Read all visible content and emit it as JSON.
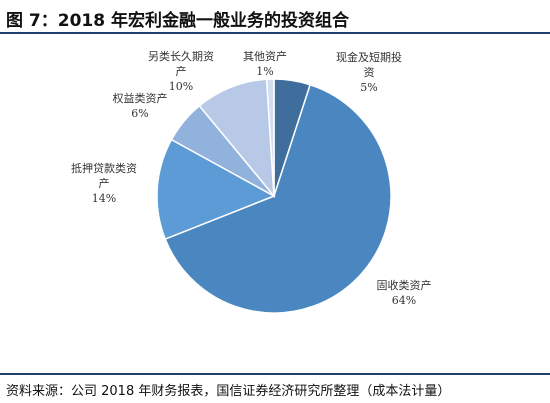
{
  "header": {
    "title": "图 7：2018 年宏利金融一般业务的投资组合"
  },
  "chart_data": {
    "type": "pie",
    "title": "",
    "categories": [
      "现金及短期投资",
      "固收类资产",
      "抵押贷款类资产",
      "权益类资产",
      "另类长久期资产",
      "其他资产"
    ],
    "values": [
      5,
      64,
      14,
      6,
      10,
      1
    ],
    "labels": [
      {
        "lines": [
          "现金及短期投",
          "资"
        ],
        "pct": "5%"
      },
      {
        "lines": [
          "固收类资产"
        ],
        "pct": "64%"
      },
      {
        "lines": [
          "抵押贷款类资",
          "产"
        ],
        "pct": "14%"
      },
      {
        "lines": [
          "权益类资产"
        ],
        "pct": "6%"
      },
      {
        "lines": [
          "另类长久期资",
          "产"
        ],
        "pct": "10%"
      },
      {
        "lines": [
          "其他资产"
        ],
        "pct": "1%"
      }
    ],
    "colors": [
      "#3f6e9c",
      "#4a86c0",
      "#5d9bd6",
      "#90b2dc",
      "#b7c9e6",
      "#d3dff0"
    ],
    "legend": "none",
    "start_angle_deg": 0,
    "direction": "clockwise"
  },
  "footer": {
    "source": "资料来源：公司 2018 年财务报表，国信证券经济研究所整理（成本法计量）"
  }
}
